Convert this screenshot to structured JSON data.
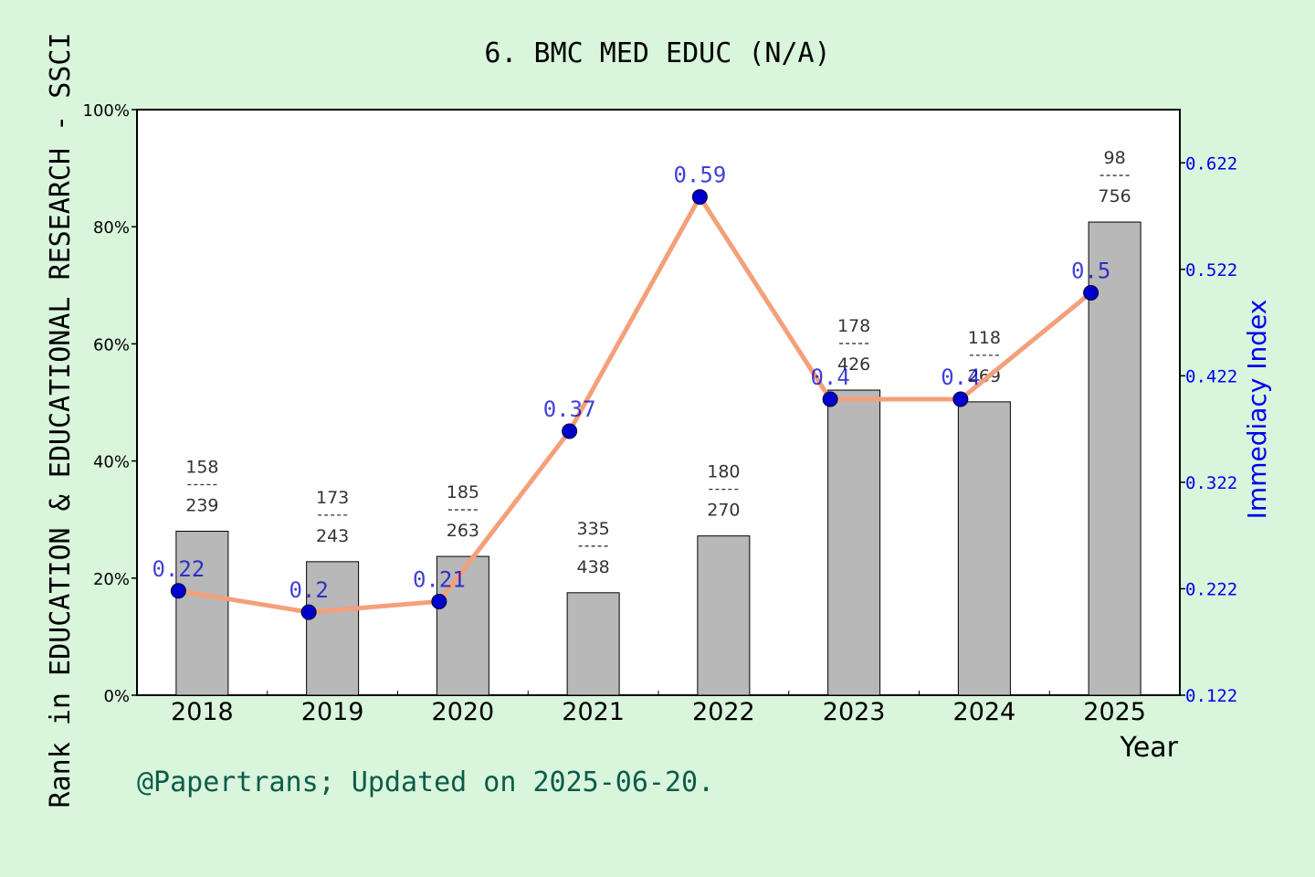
{
  "page": {
    "background": "#d9f5dc",
    "footer": "@Papertrans; Updated on 2025-06-20.",
    "footer_color": "#0b5c4a"
  },
  "chart_data": {
    "type": "bar",
    "title": "6. BMC MED EDUC (N/A)",
    "xlabel": "Year",
    "ylabel": "Rank in EDUCATION & EDUCATIONAL RESEARCH - SSCI",
    "y2label": "Immediacy Index",
    "categories": [
      "2018",
      "2019",
      "2020",
      "2021",
      "2022",
      "2023",
      "2024",
      "2025"
    ],
    "bar_series": {
      "percent": [
        28.0,
        22.8,
        23.7,
        17.5,
        27.2,
        52.1,
        50.1,
        80.8
      ],
      "rank": [
        "158",
        "173",
        "185",
        "335",
        "180",
        "178",
        "118",
        "98"
      ],
      "total": [
        "239",
        "243",
        "263",
        "438",
        "270",
        "426",
        "269",
        "756"
      ],
      "color": "#b8b8b8"
    },
    "line_series": {
      "values": [
        0.22,
        0.2,
        0.21,
        0.37,
        0.59,
        0.4,
        0.4,
        0.5
      ],
      "labels": [
        "0.22",
        "0.2",
        "0.21",
        "0.37",
        "0.59",
        "0.4",
        "0.4",
        "0.5"
      ],
      "line_color": "#f4a07a",
      "marker_color": "#0000cc"
    },
    "ylim": [
      0,
      100
    ],
    "y_ticks": [
      "0%",
      "20%",
      "40%",
      "60%",
      "80%",
      "100%"
    ],
    "y2lim": [
      0.122,
      0.672
    ],
    "y2_ticks": [
      "0.122",
      "0.222",
      "0.322",
      "0.422",
      "0.522",
      "0.622"
    ],
    "grid": false,
    "legend": "none"
  }
}
